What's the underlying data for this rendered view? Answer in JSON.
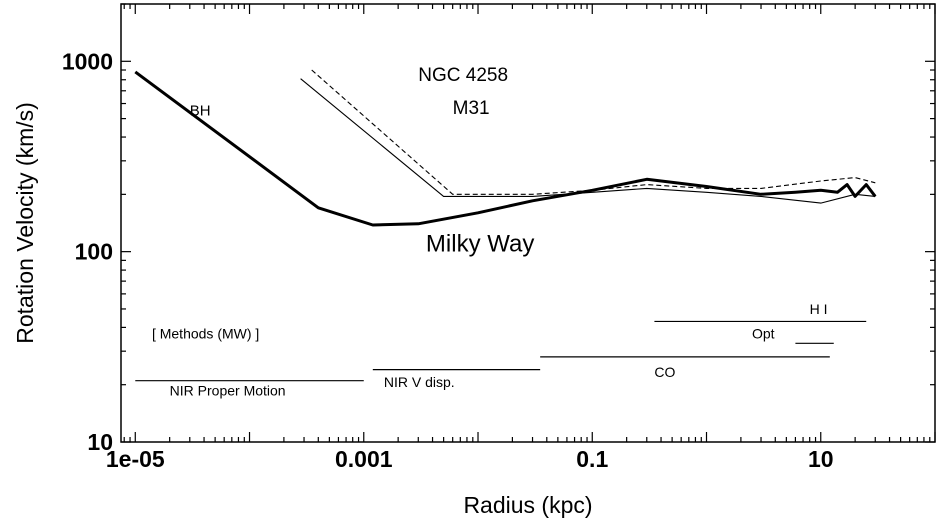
{
  "chart_data": {
    "type": "line",
    "xlabel": "Radius (kpc)",
    "ylabel": "Rotation Velocity (km/s)",
    "x_scale": "log",
    "y_scale": "log",
    "xlim": [
      7.5e-06,
      100
    ],
    "ylim": [
      10,
      2000
    ],
    "grid": false,
    "x_ticks": [
      {
        "value": 1e-05,
        "label": "1e-05"
      },
      {
        "value": 0.001,
        "label": "0.001"
      },
      {
        "value": 0.1,
        "label": "0.1"
      },
      {
        "value": 10,
        "label": "10"
      }
    ],
    "y_ticks": [
      {
        "value": 10,
        "label": "10"
      },
      {
        "value": 100,
        "label": "100"
      },
      {
        "value": 1000,
        "label": "1000"
      }
    ],
    "series": [
      {
        "name": "Milky Way",
        "style": "thick",
        "x": [
          1e-05,
          0.0004,
          0.0012,
          0.003,
          0.01,
          0.03,
          0.1,
          0.3,
          1,
          3,
          6,
          10,
          14,
          17,
          20,
          25,
          30
        ],
        "y": [
          880,
          170,
          138,
          140,
          160,
          185,
          210,
          240,
          220,
          200,
          205,
          210,
          205,
          225,
          195,
          225,
          195
        ]
      },
      {
        "name": "M31",
        "style": "thin",
        "x": [
          0.00028,
          0.005,
          0.03,
          0.1,
          0.3,
          1,
          3,
          10,
          20,
          30
        ],
        "y": [
          810,
          195,
          195,
          205,
          215,
          205,
          195,
          180,
          200,
          195
        ]
      },
      {
        "name": "NGC 4258",
        "style": "dashed",
        "x": [
          0.00035,
          0.006,
          0.03,
          0.1,
          0.3,
          1,
          3,
          10,
          20,
          30
        ],
        "y": [
          900,
          200,
          200,
          210,
          225,
          215,
          215,
          235,
          245,
          230
        ]
      }
    ],
    "annotations": [
      {
        "text": "BH",
        "x": 3e-05,
        "y": 520,
        "size": "small"
      },
      {
        "text": "NGC 4258",
        "x": 0.003,
        "y": 790,
        "size": "medium"
      },
      {
        "text": "M31",
        "x": 0.006,
        "y": 530,
        "size": "medium"
      },
      {
        "text": "Milky Way",
        "x": 0.0035,
        "y": 100,
        "size": "large"
      }
    ],
    "methods": {
      "title": "[ Methods (MW) ]",
      "title_x": 1.4e-05,
      "title_y": 35,
      "items": [
        {
          "label": "NIR Proper Motion",
          "x_start": 1e-05,
          "x_end": 0.001,
          "y": 21,
          "label_x": 2e-05,
          "label_y": 17.5
        },
        {
          "label": "NIR V disp.",
          "x_start": 0.0012,
          "x_end": 0.035,
          "y": 24,
          "label_x": 0.0015,
          "label_y": 19.5
        },
        {
          "label": "CO",
          "x_start": 0.035,
          "x_end": 12,
          "y": 28,
          "label_x": 0.35,
          "label_y": 22
        },
        {
          "label": "Opt",
          "x_start": 6,
          "x_end": 13,
          "y": 33,
          "label_x": 2.5,
          "label_y": 35
        },
        {
          "label": "H I",
          "x_start": 0.35,
          "x_end": 25,
          "y": 43,
          "label_x": 8,
          "label_y": 47
        }
      ]
    }
  }
}
